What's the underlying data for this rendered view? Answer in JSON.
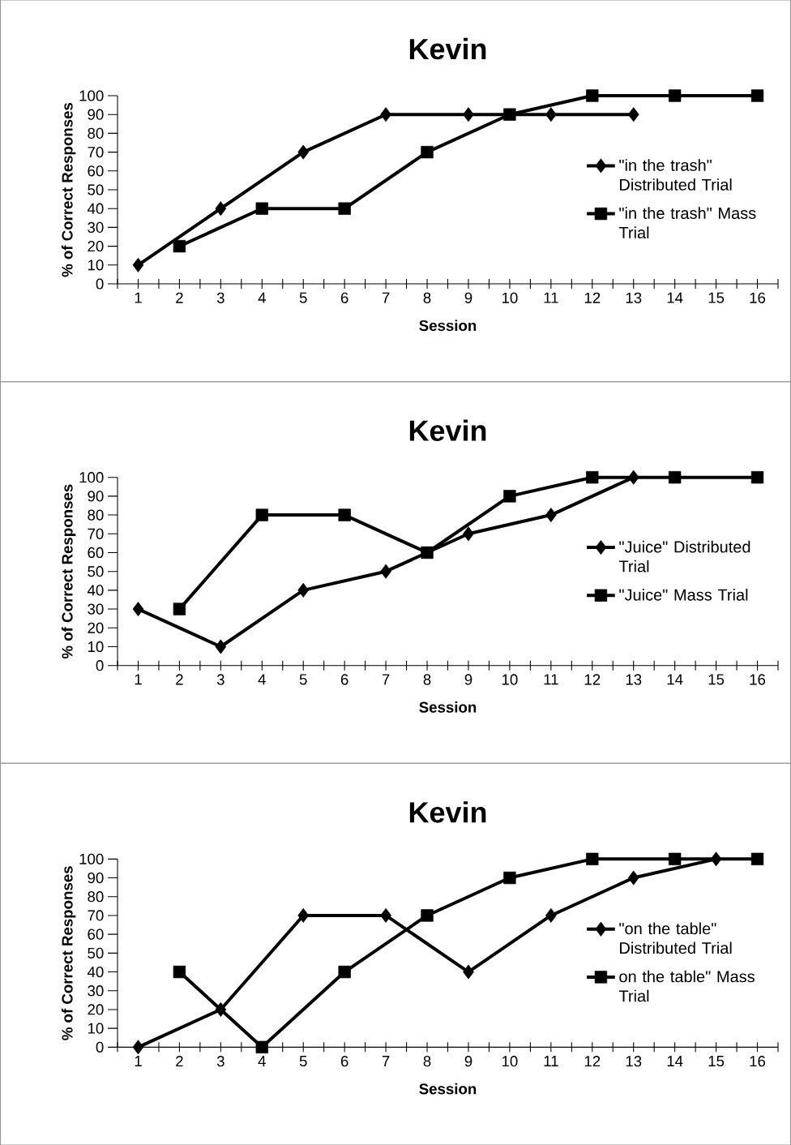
{
  "chart_data": [
    {
      "type": "line",
      "title": "Kevin",
      "xlabel": "Session",
      "ylabel": "% of Correct Responses",
      "xlim": [
        0.5,
        16.5
      ],
      "xticks": [
        {
          "value": 0.5,
          "label": null
        },
        1,
        {
          "value": 1.5,
          "label": null
        },
        2,
        {
          "value": 2.5,
          "label": null
        },
        3,
        {
          "value": 3.5,
          "label": null
        },
        4,
        {
          "value": 4.5,
          "label": null
        },
        5,
        {
          "value": 5.5,
          "label": null
        },
        6,
        {
          "value": 6.5,
          "label": null
        },
        7,
        {
          "value": 7.5,
          "label": null
        },
        8,
        {
          "value": 8.5,
          "label": null
        },
        9,
        {
          "value": 9.5,
          "label": null
        },
        10,
        {
          "value": 10.5,
          "label": null
        },
        11,
        {
          "value": 11.5,
          "label": null
        },
        12,
        {
          "value": 12.5,
          "label": null
        },
        13,
        {
          "value": 13.5,
          "label": null
        },
        14,
        {
          "value": 14.5,
          "label": null
        },
        15,
        {
          "value": 15.5,
          "label": null
        },
        16,
        {
          "value": 16.5,
          "label": null
        }
      ],
      "ylim": [
        0,
        100
      ],
      "yticks": [
        0,
        10,
        20,
        30,
        40,
        50,
        60,
        70,
        80,
        90,
        100
      ],
      "grid": false,
      "legend": "right",
      "series": [
        {
          "name": "\"in the trash\" Distributed Trial",
          "color": "#000000",
          "marker": "diamond",
          "x": [
            1,
            3,
            5,
            7,
            9,
            11,
            13
          ],
          "values": [
            10,
            40,
            70,
            90,
            90,
            90,
            90
          ]
        },
        {
          "name": "\"in the trash\" Mass Trial",
          "color": "#000000",
          "marker": "square",
          "x": [
            2,
            4,
            6,
            8,
            10,
            12,
            14,
            16
          ],
          "values": [
            20,
            40,
            40,
            70,
            90,
            100,
            100,
            100
          ]
        }
      ]
    },
    {
      "type": "line",
      "title": "Kevin",
      "xlabel": "Session",
      "ylabel": "% of Correct Responses",
      "xlim": [
        0.5,
        16.5
      ],
      "xticks": [
        {
          "value": 0.5,
          "label": null
        },
        1,
        {
          "value": 1.5,
          "label": null
        },
        2,
        {
          "value": 2.5,
          "label": null
        },
        3,
        {
          "value": 3.5,
          "label": null
        },
        4,
        {
          "value": 4.5,
          "label": null
        },
        5,
        {
          "value": 5.5,
          "label": null
        },
        6,
        {
          "value": 6.5,
          "label": null
        },
        7,
        {
          "value": 7.5,
          "label": null
        },
        8,
        {
          "value": 8.5,
          "label": null
        },
        9,
        {
          "value": 9.5,
          "label": null
        },
        10,
        {
          "value": 10.5,
          "label": null
        },
        11,
        {
          "value": 11.5,
          "label": null
        },
        12,
        {
          "value": 12.5,
          "label": null
        },
        13,
        {
          "value": 13.5,
          "label": null
        },
        14,
        {
          "value": 14.5,
          "label": null
        },
        15,
        {
          "value": 15.5,
          "label": null
        },
        16,
        {
          "value": 16.5,
          "label": null
        }
      ],
      "ylim": [
        0,
        100
      ],
      "yticks": [
        0,
        10,
        20,
        30,
        40,
        50,
        60,
        70,
        80,
        90,
        100
      ],
      "grid": false,
      "legend": "right",
      "series": [
        {
          "name": "\"Juice\" Distributed Trial",
          "color": "#000000",
          "marker": "diamond",
          "x": [
            1,
            3,
            5,
            7,
            9,
            11,
            13
          ],
          "values": [
            30,
            10,
            40,
            50,
            70,
            80,
            100
          ]
        },
        {
          "name": "\"Juice\" Mass Trial",
          "color": "#000000",
          "marker": "square",
          "x": [
            2,
            4,
            6,
            8,
            10,
            12,
            14,
            16
          ],
          "values": [
            30,
            80,
            80,
            60,
            90,
            100,
            100,
            100
          ]
        }
      ]
    },
    {
      "type": "line",
      "title": "Kevin",
      "xlabel": "Session",
      "ylabel": "% of Correct Responses",
      "xlim": [
        0.5,
        16.5
      ],
      "xticks": [
        {
          "value": 0.5,
          "label": null
        },
        1,
        {
          "value": 1.5,
          "label": null
        },
        2,
        {
          "value": 2.5,
          "label": null
        },
        3,
        {
          "value": 3.5,
          "label": null
        },
        4,
        {
          "value": 4.5,
          "label": null
        },
        5,
        {
          "value": 5.5,
          "label": null
        },
        6,
        {
          "value": 6.5,
          "label": null
        },
        7,
        {
          "value": 7.5,
          "label": null
        },
        8,
        {
          "value": 8.5,
          "label": null
        },
        9,
        {
          "value": 9.5,
          "label": null
        },
        10,
        {
          "value": 10.5,
          "label": null
        },
        11,
        {
          "value": 11.5,
          "label": null
        },
        12,
        {
          "value": 12.5,
          "label": null
        },
        13,
        {
          "value": 13.5,
          "label": null
        },
        14,
        {
          "value": 14.5,
          "label": null
        },
        15,
        {
          "value": 15.5,
          "label": null
        },
        16,
        {
          "value": 16.5,
          "label": null
        }
      ],
      "ylim": [
        0,
        100
      ],
      "yticks": [
        0,
        10,
        20,
        30,
        40,
        50,
        60,
        70,
        80,
        90,
        100
      ],
      "grid": false,
      "legend": "right",
      "series": [
        {
          "name": "\"on the table\" Distributed Trial",
          "color": "#000000",
          "marker": "diamond",
          "x": [
            1,
            3,
            5,
            7,
            9,
            11,
            13,
            15
          ],
          "values": [
            0,
            20,
            70,
            70,
            40,
            70,
            90,
            100
          ]
        },
        {
          "name": "on the table\" Mass Trial",
          "color": "#000000",
          "marker": "square",
          "x": [
            2,
            4,
            6,
            8,
            10,
            12,
            14,
            16
          ],
          "values": [
            40,
            0,
            40,
            70,
            90,
            100,
            100,
            100
          ]
        }
      ]
    }
  ]
}
